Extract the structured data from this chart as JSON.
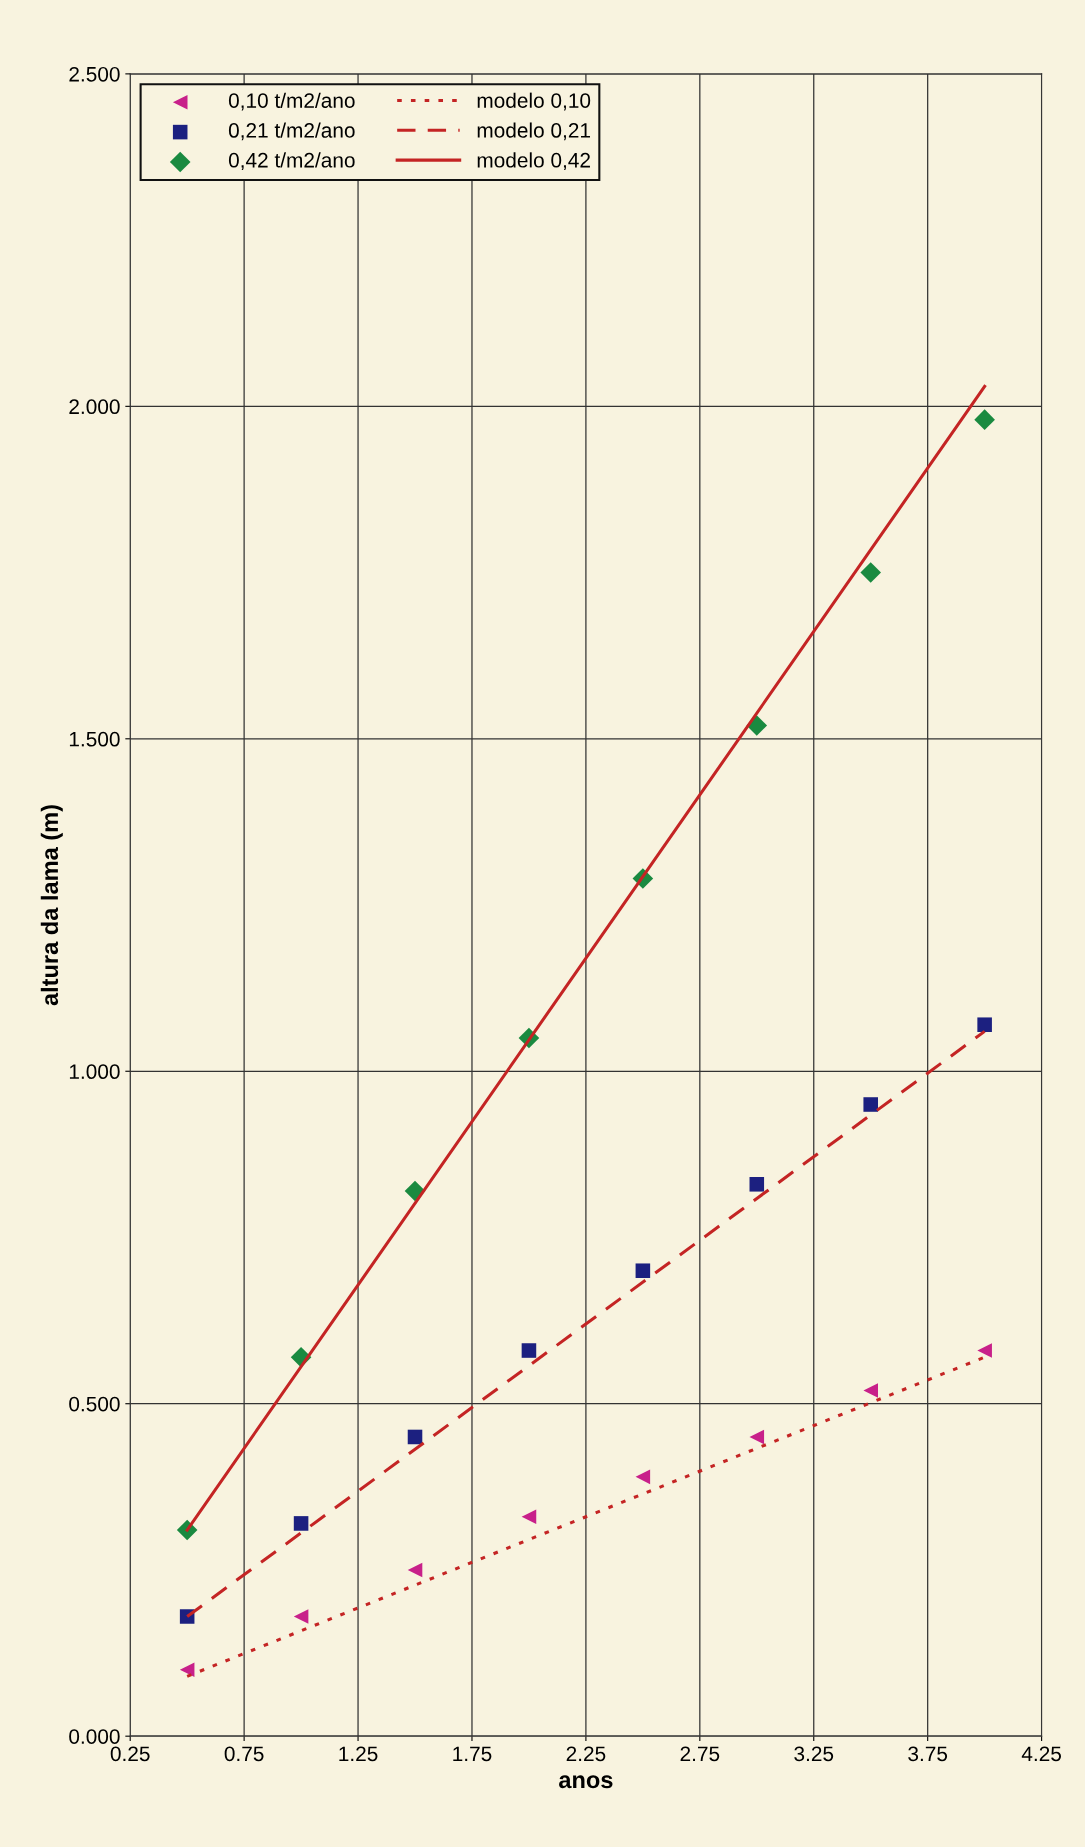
{
  "chart_data": {
    "type": "scatter",
    "xlabel": "anos",
    "ylabel": "altura da lama (m)",
    "xlim": [
      0.25,
      4.25
    ],
    "xticks": [
      0.25,
      0.75,
      1.25,
      1.75,
      2.25,
      2.75,
      3.25,
      3.75,
      4.25
    ],
    "ylim": [
      0,
      2.5
    ],
    "yticks": [
      {
        "value": 0,
        "label": "0.000"
      },
      {
        "value": 0.5,
        "label": "0.500"
      },
      {
        "value": 1,
        "label": "1.000"
      },
      {
        "value": 1.5,
        "label": "1.500"
      },
      {
        "value": 2,
        "label": "2.000"
      },
      {
        "value": 2.5,
        "label": "2.500"
      }
    ],
    "grid": true,
    "legend": "top left",
    "series": [
      {
        "name": "0,10 t/m2/ano",
        "marker": "triangle",
        "color": "#c8208a",
        "x": [
          0.5,
          1.0,
          1.5,
          2.0,
          2.5,
          3.0,
          3.5,
          4.0
        ],
        "values": [
          0.1,
          0.18,
          0.25,
          0.33,
          0.39,
          0.45,
          0.52,
          0.58
        ]
      },
      {
        "name": "0,21 t/m2/ano",
        "marker": "square",
        "color": "#1c2080",
        "x": [
          0.5,
          1.0,
          1.5,
          2.0,
          2.5,
          3.0,
          3.5,
          4.0
        ],
        "values": [
          0.18,
          0.32,
          0.45,
          0.58,
          0.7,
          0.83,
          0.95,
          1.07
        ]
      },
      {
        "name": "0,42 t/m2/ano",
        "marker": "diamond",
        "color": "#1a8a40",
        "x": [
          0.5,
          1.0,
          1.5,
          2.0,
          2.5,
          3.0,
          3.5,
          4.0
        ],
        "values": [
          0.31,
          0.57,
          0.82,
          1.05,
          1.29,
          1.52,
          1.75,
          1.98
        ]
      },
      {
        "name": "modelo 0,10",
        "type": "line",
        "line_style": "dotted",
        "color": "#c42424",
        "x": [
          0.5,
          4.0
        ],
        "values": [
          0.09,
          0.57
        ]
      },
      {
        "name": "modelo 0,21",
        "type": "line",
        "line_style": "dashed",
        "color": "#c42424",
        "x": [
          0.5,
          4.0
        ],
        "values": [
          0.18,
          1.06
        ]
      },
      {
        "name": "modelo 0,42",
        "type": "line",
        "line_style": "solid",
        "color": "#c42424",
        "x": [
          0.5,
          4.0
        ],
        "values": [
          0.31,
          2.03
        ]
      }
    ]
  }
}
